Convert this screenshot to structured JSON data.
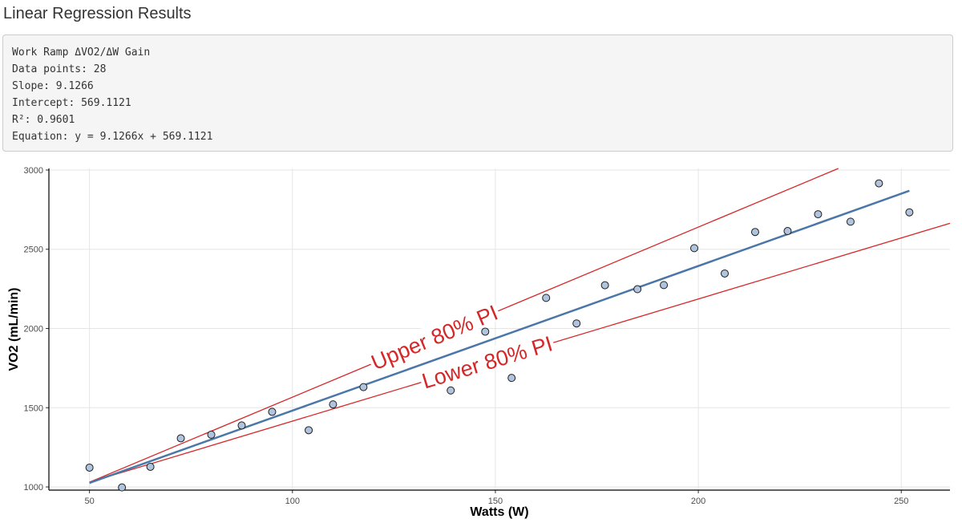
{
  "page": {
    "title": "Linear Regression Results"
  },
  "results": {
    "lines": [
      "Work Ramp ΔVO2/ΔW Gain",
      "Data points: 28",
      "Slope: 9.1266",
      "Intercept: 569.1121",
      "R²: 0.9601",
      "Equation: y = 9.1266x + 569.1121"
    ]
  },
  "colors": {
    "points_fill": "#b0c4de",
    "points_stroke": "#1f1f1f",
    "fit_line": "#4a77a8",
    "prediction_interval": "#d62728",
    "grid": "#e5e5e5"
  },
  "chart_data": {
    "type": "scatter",
    "title": "",
    "xlabel": "Watts (W)",
    "ylabel": "VO2 (mL/min)",
    "xlim": [
      40,
      262
    ],
    "ylim": [
      980,
      3010
    ],
    "xticks": [
      50,
      100,
      150,
      200,
      250
    ],
    "yticks": [
      1000,
      1500,
      2000,
      2500,
      3000
    ],
    "grid": true,
    "points": [
      {
        "x": 50,
        "y": 1122
      },
      {
        "x": 58,
        "y": 997
      },
      {
        "x": 65,
        "y": 1127
      },
      {
        "x": 72.5,
        "y": 1307
      },
      {
        "x": 80,
        "y": 1330
      },
      {
        "x": 87.5,
        "y": 1388
      },
      {
        "x": 95,
        "y": 1474
      },
      {
        "x": 104,
        "y": 1358
      },
      {
        "x": 110,
        "y": 1521
      },
      {
        "x": 117.5,
        "y": 1630
      },
      {
        "x": 124,
        "y": 1840
      },
      {
        "x": 131.5,
        "y": 1928
      },
      {
        "x": 139,
        "y": 1609
      },
      {
        "x": 147.5,
        "y": 1980
      },
      {
        "x": 154,
        "y": 1688
      },
      {
        "x": 162.5,
        "y": 2193
      },
      {
        "x": 170,
        "y": 2032
      },
      {
        "x": 177,
        "y": 2273
      },
      {
        "x": 185,
        "y": 2248
      },
      {
        "x": 191.5,
        "y": 2274
      },
      {
        "x": 199,
        "y": 2507
      },
      {
        "x": 206.5,
        "y": 2347
      },
      {
        "x": 214,
        "y": 2609
      },
      {
        "x": 222,
        "y": 2615
      },
      {
        "x": 229.5,
        "y": 2721
      },
      {
        "x": 237.5,
        "y": 2674
      },
      {
        "x": 244.5,
        "y": 2916
      },
      {
        "x": 252,
        "y": 2733
      }
    ],
    "fit_line": {
      "slope": 9.1266,
      "intercept": 569.1121,
      "x_range": [
        50,
        252
      ]
    },
    "upper_pi": {
      "name": "Upper 80% PI",
      "points": [
        [
          50,
          1030
        ],
        [
          234.5,
          3010
        ]
      ]
    },
    "lower_pi": {
      "name": "Lower 80% PI",
      "points": [
        [
          50,
          1030
        ],
        [
          262,
          2664
        ]
      ]
    }
  }
}
